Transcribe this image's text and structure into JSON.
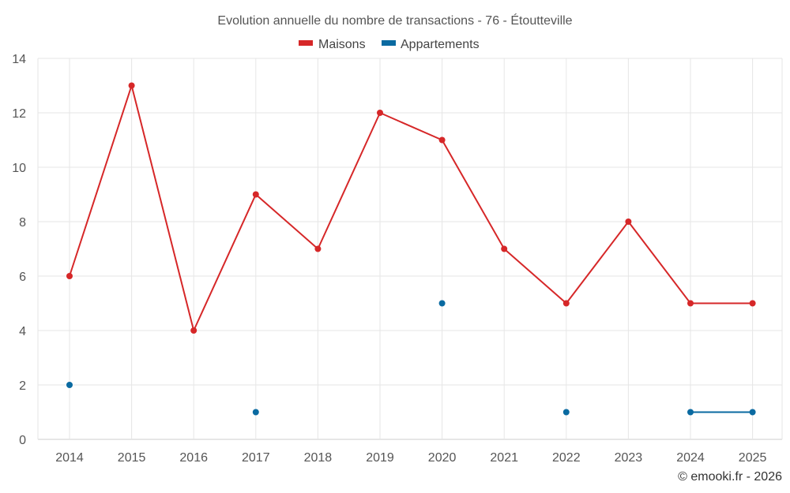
{
  "chart_data": {
    "type": "line",
    "title": "Evolution annuelle du nombre de transactions - 76 - Étoutteville",
    "categories": [
      "2014",
      "2015",
      "2016",
      "2017",
      "2018",
      "2019",
      "2020",
      "2021",
      "2022",
      "2023",
      "2024",
      "2025"
    ],
    "series": [
      {
        "name": "Maisons",
        "color": "#d62728",
        "values": [
          6,
          13,
          4,
          9,
          7,
          12,
          11,
          7,
          5,
          8,
          5,
          5
        ]
      },
      {
        "name": "Appartements",
        "color": "#0a6aa1",
        "values": [
          2,
          null,
          null,
          1,
          null,
          null,
          5,
          null,
          1,
          null,
          1,
          1
        ]
      }
    ],
    "ylim": [
      0,
      14
    ],
    "yticks": [
      0,
      2,
      4,
      6,
      8,
      10,
      12,
      14
    ],
    "xlabel": "",
    "ylabel": "",
    "grid": true,
    "legend": "top-center",
    "credit": "© emooki.fr - 2026"
  }
}
